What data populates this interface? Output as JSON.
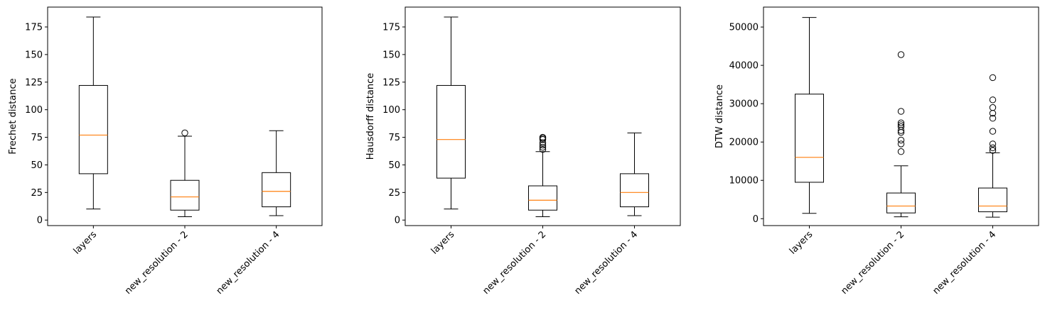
{
  "colors": {
    "box": "#000000",
    "median": "#ff7f0e",
    "background": "#ffffff"
  },
  "chart_data": [
    {
      "type": "box",
      "ylabel": "Frechet distance",
      "categories": [
        "layers",
        "new_resolution - 2",
        "new_resolution - 4"
      ],
      "ylim": [
        -5,
        193
      ],
      "yticks": [
        0,
        25,
        50,
        75,
        100,
        125,
        150,
        175
      ],
      "series": [
        {
          "whisker_low": 10,
          "q1": 42,
          "median": 77,
          "q3": 122,
          "whisker_high": 184,
          "outliers": []
        },
        {
          "whisker_low": 3,
          "q1": 9,
          "median": 21,
          "q3": 36,
          "whisker_high": 76,
          "outliers": [
            79
          ]
        },
        {
          "whisker_low": 4,
          "q1": 12,
          "median": 26,
          "q3": 43,
          "whisker_high": 81,
          "outliers": []
        }
      ]
    },
    {
      "type": "box",
      "ylabel": "Hausdorff distance",
      "categories": [
        "layers",
        "new_resolution - 2",
        "new_resolution - 4"
      ],
      "ylim": [
        -5,
        193
      ],
      "yticks": [
        0,
        25,
        50,
        75,
        100,
        125,
        150,
        175
      ],
      "series": [
        {
          "whisker_low": 10,
          "q1": 38,
          "median": 73,
          "q3": 122,
          "whisker_high": 184,
          "outliers": []
        },
        {
          "whisker_low": 3,
          "q1": 9,
          "median": 18,
          "q3": 31,
          "whisker_high": 62,
          "outliers": [
            64,
            66,
            68,
            70,
            73,
            74,
            75
          ]
        },
        {
          "whisker_low": 4,
          "q1": 12,
          "median": 25,
          "q3": 42,
          "whisker_high": 79,
          "outliers": []
        }
      ]
    },
    {
      "type": "box",
      "ylabel": "DTW distance",
      "categories": [
        "layers",
        "new_resolution - 2",
        "new_resolution - 4"
      ],
      "ylim": [
        -1800,
        55200
      ],
      "yticks": [
        0,
        10000,
        20000,
        30000,
        40000,
        50000
      ],
      "series": [
        {
          "whisker_low": 1400,
          "q1": 9500,
          "median": 16000,
          "q3": 32500,
          "whisker_high": 52500,
          "outliers": []
        },
        {
          "whisker_low": 500,
          "q1": 1500,
          "median": 3300,
          "q3": 6700,
          "whisker_high": 13800,
          "outliers": [
            17500,
            19500,
            20500,
            22500,
            23000,
            24000,
            24500,
            25000,
            28000,
            42800
          ]
        },
        {
          "whisker_low": 400,
          "q1": 1800,
          "median": 3300,
          "q3": 8000,
          "whisker_high": 17200,
          "outliers": [
            17800,
            18500,
            19500,
            22800,
            26200,
            27500,
            29000,
            31000,
            36800
          ]
        }
      ]
    }
  ]
}
